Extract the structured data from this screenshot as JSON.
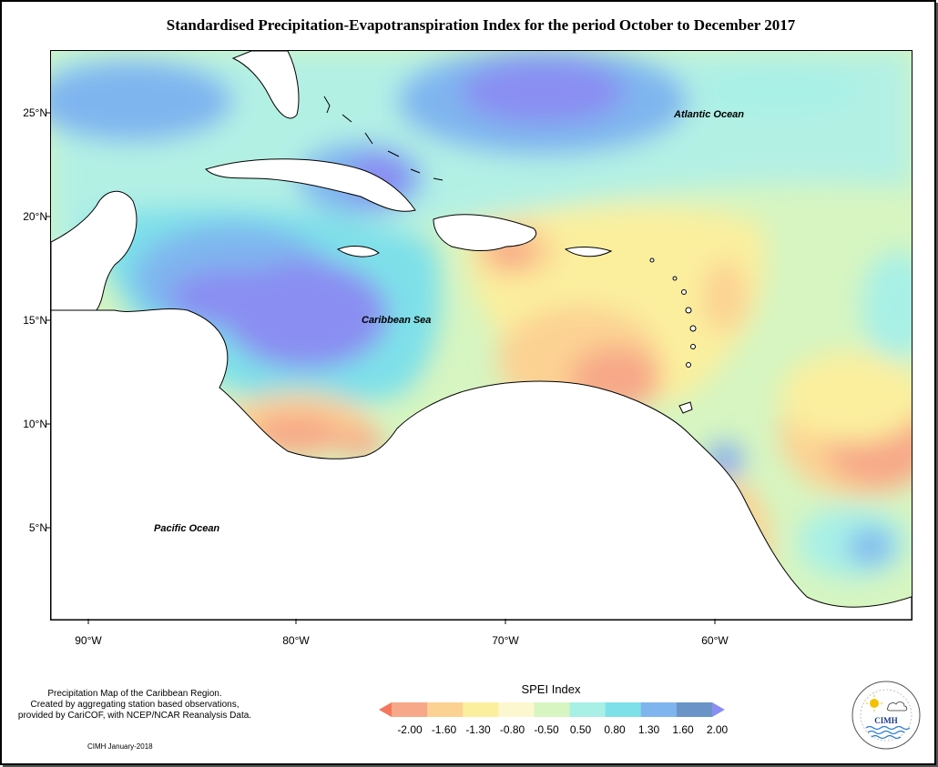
{
  "title": "Standardised Precipitation-Evapotranspiration Index for the period October to December 2017",
  "map": {
    "y_ticks": [
      "25°N",
      "20°N",
      "15°N",
      "10°N",
      "5°N"
    ],
    "x_ticks": [
      "90°W",
      "80°W",
      "70°W",
      "60°W"
    ],
    "labels": {
      "atlantic": "Atlantic Ocean",
      "caribbean": "Caribbean Sea",
      "pacific": "Pacific Ocean"
    }
  },
  "footnote": {
    "line1": "Precipitation Map of the Caribbean Region.",
    "line2": "Created by aggregating station based observations,",
    "line3": "provided by CariCOF, with NCEP/NCAR Reanalysis Data.",
    "credit": "CIMH January-2018"
  },
  "legend": {
    "title": "SPEI Index",
    "values": [
      "-2.00",
      "-1.60",
      "-1.30",
      "-0.80",
      "-0.50",
      "0.50",
      "0.80",
      "1.30",
      "1.60",
      "2.00"
    ],
    "colors": [
      "#f4775e",
      "#f7a888",
      "#fcd293",
      "#fbef9e",
      "#fdf7d0",
      "#d6f5c1",
      "#a8f0e6",
      "#7ee0e9",
      "#7fb5ef",
      "#6a94c8",
      "#8a8ef2"
    ]
  },
  "logo": {
    "text": "CIMH"
  }
}
